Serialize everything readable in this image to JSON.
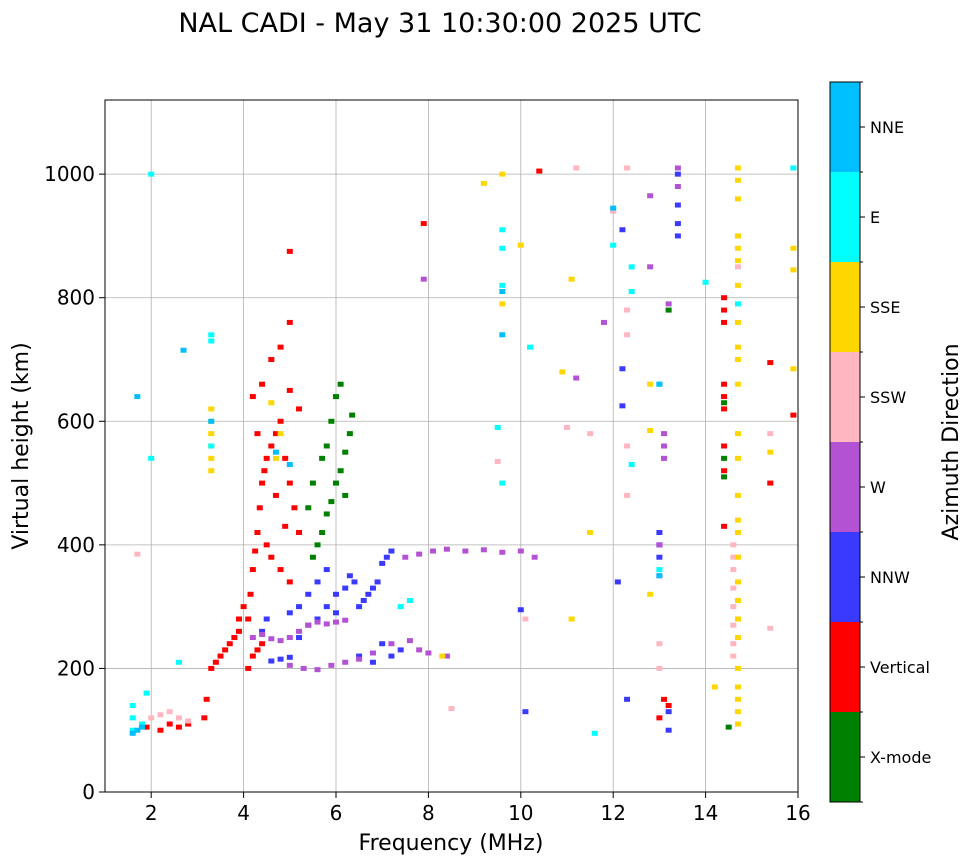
{
  "chart_data": {
    "type": "scatter",
    "title": "NAL CADI - May 31 10:30:00 2025 UTC",
    "xlabel": "Frequency (MHz)",
    "ylabel": "Virtual height (km)",
    "xlim": [
      1,
      16
    ],
    "ylim": [
      0,
      1120
    ],
    "xticks": [
      2,
      4,
      6,
      8,
      10,
      12,
      14,
      16
    ],
    "yticks": [
      0,
      200,
      400,
      600,
      800,
      1000
    ],
    "grid": true,
    "colorbar": {
      "label": "Azimuth Direction",
      "categories": [
        {
          "name": "X-mode",
          "color": "#008000"
        },
        {
          "name": "Vertical",
          "color": "#ff0000"
        },
        {
          "name": "NNW",
          "color": "#3a3aff"
        },
        {
          "name": "W",
          "color": "#b452d4"
        },
        {
          "name": "SSW",
          "color": "#ffb6c1"
        },
        {
          "name": "SSE",
          "color": "#ffd700"
        },
        {
          "name": "E",
          "color": "#00ffff"
        },
        {
          "name": "NNE",
          "color": "#00bfff"
        }
      ]
    },
    "series": [
      {
        "name": "Vertical",
        "points": [
          [
            4.1,
            200
          ],
          [
            4.2,
            220
          ],
          [
            4.3,
            230
          ],
          [
            4.4,
            240
          ],
          [
            4.1,
            280
          ],
          [
            4.15,
            320
          ],
          [
            4.2,
            360
          ],
          [
            4.25,
            390
          ],
          [
            4.3,
            420
          ],
          [
            4.35,
            460
          ],
          [
            4.4,
            500
          ],
          [
            4.45,
            520
          ],
          [
            4.5,
            540
          ],
          [
            4.6,
            560
          ],
          [
            4.7,
            580
          ],
          [
            4.8,
            600
          ],
          [
            4.9,
            540
          ],
          [
            5.0,
            500
          ],
          [
            5.1,
            460
          ],
          [
            5.2,
            420
          ],
          [
            4.5,
            400
          ],
          [
            4.6,
            380
          ],
          [
            4.8,
            360
          ],
          [
            5.0,
            340
          ],
          [
            4.2,
            640
          ],
          [
            4.4,
            660
          ],
          [
            4.6,
            700
          ],
          [
            4.8,
            720
          ],
          [
            5.0,
            760
          ],
          [
            5.0,
            650
          ],
          [
            5.2,
            620
          ],
          [
            4.3,
            580
          ],
          [
            4.7,
            480
          ],
          [
            4.9,
            430
          ],
          [
            3.7,
            240
          ],
          [
            3.8,
            250
          ],
          [
            3.9,
            260
          ],
          [
            3.6,
            230
          ],
          [
            3.5,
            220
          ],
          [
            3.9,
            280
          ],
          [
            4.0,
            300
          ],
          [
            3.3,
            200
          ],
          [
            3.4,
            210
          ],
          [
            3.2,
            150
          ],
          [
            3.15,
            120
          ],
          [
            2.8,
            110
          ],
          [
            2.6,
            105
          ],
          [
            2.4,
            110
          ],
          [
            2.2,
            100
          ],
          [
            1.9,
            105
          ],
          [
            13.1,
            150
          ],
          [
            13.0,
            120
          ],
          [
            13.2,
            140
          ],
          [
            14.4,
            800
          ],
          [
            14.4,
            780
          ],
          [
            14.4,
            760
          ],
          [
            14.4,
            660
          ],
          [
            14.4,
            640
          ],
          [
            14.4,
            620
          ],
          [
            14.4,
            560
          ],
          [
            14.4,
            520
          ],
          [
            15.4,
            500
          ],
          [
            15.4,
            695
          ],
          [
            15.9,
            610
          ],
          [
            14.4,
            430
          ],
          [
            10.4,
            1005
          ],
          [
            5.0,
            875
          ],
          [
            7.9,
            920
          ]
        ]
      },
      {
        "name": "X-mode",
        "points": [
          [
            5.5,
            380
          ],
          [
            5.6,
            400
          ],
          [
            5.7,
            420
          ],
          [
            5.8,
            450
          ],
          [
            5.9,
            470
          ],
          [
            6.0,
            500
          ],
          [
            6.1,
            520
          ],
          [
            6.2,
            550
          ],
          [
            6.3,
            580
          ],
          [
            6.35,
            610
          ],
          [
            5.8,
            560
          ],
          [
            5.9,
            600
          ],
          [
            6.0,
            640
          ],
          [
            6.1,
            660
          ],
          [
            5.7,
            540
          ],
          [
            5.4,
            460
          ],
          [
            5.5,
            500
          ],
          [
            6.2,
            480
          ],
          [
            14.4,
            540
          ],
          [
            14.4,
            510
          ],
          [
            14.4,
            630
          ],
          [
            13.2,
            780
          ],
          [
            14.5,
            105
          ]
        ]
      },
      {
        "name": "NNW",
        "points": [
          [
            4.8,
            215
          ],
          [
            5.0,
            218
          ],
          [
            4.6,
            212
          ],
          [
            5.2,
            250
          ],
          [
            5.4,
            270
          ],
          [
            5.6,
            280
          ],
          [
            5.8,
            300
          ],
          [
            6.0,
            320
          ],
          [
            6.2,
            330
          ],
          [
            6.4,
            340
          ],
          [
            6.5,
            300
          ],
          [
            6.6,
            310
          ],
          [
            6.7,
            320
          ],
          [
            6.8,
            330
          ],
          [
            6.9,
            340
          ],
          [
            7.0,
            370
          ],
          [
            7.1,
            380
          ],
          [
            7.2,
            390
          ],
          [
            6.3,
            350
          ],
          [
            6.0,
            290
          ],
          [
            5.0,
            290
          ],
          [
            5.2,
            300
          ],
          [
            5.4,
            320
          ],
          [
            5.6,
            340
          ],
          [
            5.8,
            360
          ],
          [
            7.0,
            240
          ],
          [
            7.2,
            220
          ],
          [
            7.4,
            230
          ],
          [
            6.5,
            220
          ],
          [
            6.8,
            210
          ],
          [
            4.4,
            260
          ],
          [
            4.5,
            280
          ],
          [
            13.0,
            420
          ],
          [
            13.0,
            400
          ],
          [
            13.0,
            380
          ],
          [
            13.2,
            130
          ],
          [
            13.2,
            100
          ],
          [
            13.4,
            900
          ],
          [
            13.4,
            920
          ],
          [
            13.4,
            950
          ],
          [
            13.4,
            1000
          ],
          [
            10.0,
            295
          ],
          [
            12.1,
            340
          ],
          [
            12.3,
            150
          ],
          [
            10.1,
            130
          ],
          [
            12.2,
            910
          ],
          [
            12.2,
            625
          ],
          [
            12.2,
            685
          ]
        ]
      },
      {
        "name": "W",
        "points": [
          [
            4.2,
            250
          ],
          [
            4.4,
            255
          ],
          [
            4.6,
            248
          ],
          [
            4.8,
            245
          ],
          [
            5.0,
            250
          ],
          [
            5.2,
            260
          ],
          [
            5.4,
            270
          ],
          [
            5.6,
            275
          ],
          [
            5.8,
            272
          ],
          [
            6.0,
            275
          ],
          [
            6.2,
            278
          ],
          [
            5.0,
            205
          ],
          [
            5.3,
            200
          ],
          [
            5.6,
            198
          ],
          [
            5.9,
            205
          ],
          [
            6.2,
            210
          ],
          [
            6.5,
            215
          ],
          [
            6.8,
            225
          ],
          [
            7.2,
            240
          ],
          [
            7.6,
            245
          ],
          [
            7.8,
            230
          ],
          [
            8.0,
            225
          ],
          [
            8.4,
            220
          ],
          [
            7.5,
            380
          ],
          [
            7.8,
            385
          ],
          [
            8.1,
            390
          ],
          [
            8.4,
            393
          ],
          [
            8.8,
            390
          ],
          [
            9.2,
            392
          ],
          [
            9.6,
            388
          ],
          [
            10.0,
            390
          ],
          [
            10.3,
            380
          ],
          [
            13.0,
            350
          ],
          [
            13.0,
            400
          ],
          [
            13.1,
            540
          ],
          [
            13.1,
            560
          ],
          [
            13.1,
            580
          ],
          [
            13.2,
            790
          ],
          [
            13.4,
            980
          ],
          [
            13.4,
            1010
          ],
          [
            12.8,
            965
          ],
          [
            11.8,
            760
          ],
          [
            11.2,
            670
          ],
          [
            12.8,
            850
          ],
          [
            7.9,
            830
          ]
        ]
      },
      {
        "name": "SSW",
        "points": [
          [
            2.0,
            120
          ],
          [
            2.2,
            125
          ],
          [
            2.4,
            130
          ],
          [
            2.6,
            120
          ],
          [
            2.8,
            115
          ],
          [
            1.7,
            385
          ],
          [
            12.3,
            1010
          ],
          [
            12.3,
            780
          ],
          [
            12.3,
            740
          ],
          [
            12.3,
            560
          ],
          [
            12.3,
            480
          ],
          [
            13.0,
            240
          ],
          [
            13.0,
            200
          ],
          [
            14.6,
            400
          ],
          [
            14.6,
            380
          ],
          [
            14.6,
            360
          ],
          [
            14.6,
            330
          ],
          [
            14.6,
            300
          ],
          [
            14.6,
            270
          ],
          [
            14.6,
            240
          ],
          [
            14.6,
            220
          ],
          [
            15.4,
            580
          ],
          [
            15.4,
            265
          ],
          [
            9.5,
            535
          ],
          [
            10.1,
            280
          ],
          [
            11.0,
            590
          ],
          [
            11.5,
            580
          ],
          [
            8.5,
            135
          ],
          [
            11.2,
            1010
          ],
          [
            12.0,
            940
          ],
          [
            14.7,
            850
          ],
          [
            14.7,
            900
          ]
        ]
      },
      {
        "name": "SSE",
        "points": [
          [
            3.3,
            520
          ],
          [
            3.3,
            540
          ],
          [
            3.3,
            560
          ],
          [
            3.3,
            580
          ],
          [
            3.3,
            600
          ],
          [
            3.3,
            620
          ],
          [
            4.6,
            630
          ],
          [
            4.8,
            580
          ],
          [
            4.7,
            540
          ],
          [
            9.6,
            790
          ],
          [
            9.2,
            985
          ],
          [
            9.6,
            1000
          ],
          [
            14.7,
            1010
          ],
          [
            14.7,
            990
          ],
          [
            14.7,
            960
          ],
          [
            14.7,
            900
          ],
          [
            14.7,
            880
          ],
          [
            14.7,
            860
          ],
          [
            14.7,
            820
          ],
          [
            14.7,
            760
          ],
          [
            14.7,
            720
          ],
          [
            14.7,
            700
          ],
          [
            14.7,
            660
          ],
          [
            14.7,
            580
          ],
          [
            14.7,
            540
          ],
          [
            14.7,
            480
          ],
          [
            14.7,
            440
          ],
          [
            14.7,
            420
          ],
          [
            14.7,
            380
          ],
          [
            14.7,
            340
          ],
          [
            14.7,
            310
          ],
          [
            14.7,
            280
          ],
          [
            14.7,
            250
          ],
          [
            14.7,
            200
          ],
          [
            14.7,
            170
          ],
          [
            14.7,
            150
          ],
          [
            14.7,
            130
          ],
          [
            14.7,
            110
          ],
          [
            14.2,
            170
          ],
          [
            15.4,
            550
          ],
          [
            15.9,
            880
          ],
          [
            15.9,
            845
          ],
          [
            15.9,
            685
          ],
          [
            12.8,
            660
          ],
          [
            12.8,
            585
          ],
          [
            12.8,
            320
          ],
          [
            11.1,
            280
          ],
          [
            11.5,
            420
          ],
          [
            10.9,
            680
          ],
          [
            11.1,
            830
          ],
          [
            10.0,
            885
          ],
          [
            8.3,
            220
          ]
        ]
      },
      {
        "name": "E",
        "points": [
          [
            1.6,
            100
          ],
          [
            1.6,
            120
          ],
          [
            1.6,
            140
          ],
          [
            1.8,
            110
          ],
          [
            1.9,
            160
          ],
          [
            3.3,
            730
          ],
          [
            3.3,
            740
          ],
          [
            3.3,
            560
          ],
          [
            2.0,
            1000
          ],
          [
            2.0,
            540
          ],
          [
            2.6,
            210
          ],
          [
            9.6,
            820
          ],
          [
            9.6,
            880
          ],
          [
            9.6,
            910
          ],
          [
            9.5,
            590
          ],
          [
            9.6,
            500
          ],
          [
            10.2,
            720
          ],
          [
            12.4,
            850
          ],
          [
            12.4,
            530
          ],
          [
            12.4,
            810
          ],
          [
            13.0,
            360
          ],
          [
            13.0,
            660
          ],
          [
            14.0,
            825
          ],
          [
            14.7,
            790
          ],
          [
            15.9,
            1010
          ],
          [
            11.6,
            95
          ],
          [
            12.0,
            885
          ],
          [
            7.4,
            300
          ],
          [
            7.6,
            310
          ]
        ]
      },
      {
        "name": "NNE",
        "points": [
          [
            1.6,
            95
          ],
          [
            1.7,
            100
          ],
          [
            1.8,
            105
          ],
          [
            3.3,
            600
          ],
          [
            4.7,
            550
          ],
          [
            5.0,
            530
          ],
          [
            9.6,
            740
          ],
          [
            9.6,
            810
          ],
          [
            13.0,
            660
          ],
          [
            13.0,
            350
          ],
          [
            12.0,
            945
          ],
          [
            1.7,
            640
          ],
          [
            2.7,
            715
          ]
        ]
      }
    ]
  }
}
